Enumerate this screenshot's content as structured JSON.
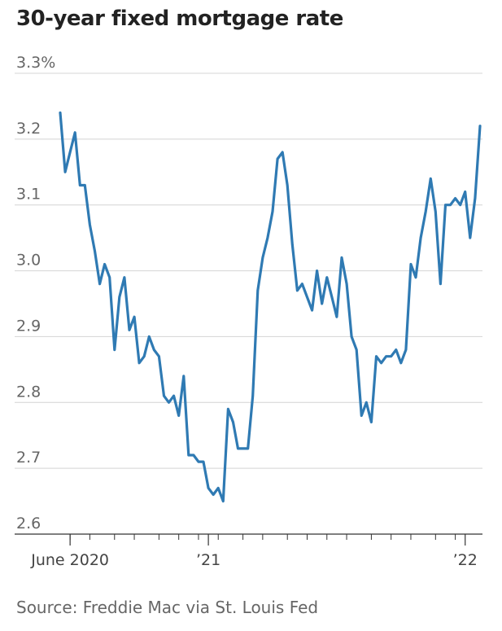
{
  "chart_data": {
    "type": "line",
    "title": "30-year fixed mortgage rate",
    "source": "Source: Freddie Mac via St. Louis Fed",
    "xlabel": "",
    "ylabel": "",
    "ylim": [
      2.6,
      3.3
    ],
    "y_ticks": [
      {
        "value": 3.3,
        "label": "3.3%"
      },
      {
        "value": 3.2,
        "label": "3.2"
      },
      {
        "value": 3.1,
        "label": "3.1"
      },
      {
        "value": 3.0,
        "label": "3.0"
      },
      {
        "value": 2.9,
        "label": "2.9"
      },
      {
        "value": 2.8,
        "label": "2.8"
      },
      {
        "value": 2.7,
        "label": "2.7"
      },
      {
        "value": 2.6,
        "label": "2.6"
      }
    ],
    "x_labels": [
      {
        "week": 2,
        "label": "June 2020"
      },
      {
        "week": 30,
        "label": "’21"
      },
      {
        "week": 82,
        "label": "’22"
      }
    ],
    "x_ticks": [
      2,
      6,
      11,
      15,
      20,
      24,
      28,
      32,
      37,
      41,
      46,
      50,
      54,
      58,
      63,
      67,
      71,
      76,
      80
    ],
    "grid": true,
    "color": "#2f7ab3",
    "series": [
      {
        "values": [
          3.24,
          3.15,
          3.18,
          3.21,
          3.13,
          3.13,
          3.07,
          3.03,
          2.98,
          3.01,
          2.99,
          2.88,
          2.96,
          2.99,
          2.91,
          2.93,
          2.86,
          2.87,
          2.9,
          2.88,
          2.87,
          2.81,
          2.8,
          2.81,
          2.78,
          2.84,
          2.72,
          2.72,
          2.71,
          2.71,
          2.67,
          2.66,
          2.67,
          2.65,
          2.79,
          2.77,
          2.73,
          2.73,
          2.73,
          2.81,
          2.97,
          3.02,
          3.05,
          3.09,
          3.17,
          3.18,
          3.13,
          3.04,
          2.97,
          2.98,
          2.96,
          2.94,
          3.0,
          2.95,
          2.99,
          2.96,
          2.93,
          3.02,
          2.98,
          2.9,
          2.88,
          2.78,
          2.8,
          2.77,
          2.87,
          2.86,
          2.87,
          2.87,
          2.88,
          2.86,
          2.88,
          3.01,
          2.99,
          3.05,
          3.09,
          3.14,
          3.09,
          2.98,
          3.1,
          3.1,
          3.11,
          3.1,
          3.12,
          3.05,
          3.11,
          3.22
        ]
      }
    ]
  }
}
